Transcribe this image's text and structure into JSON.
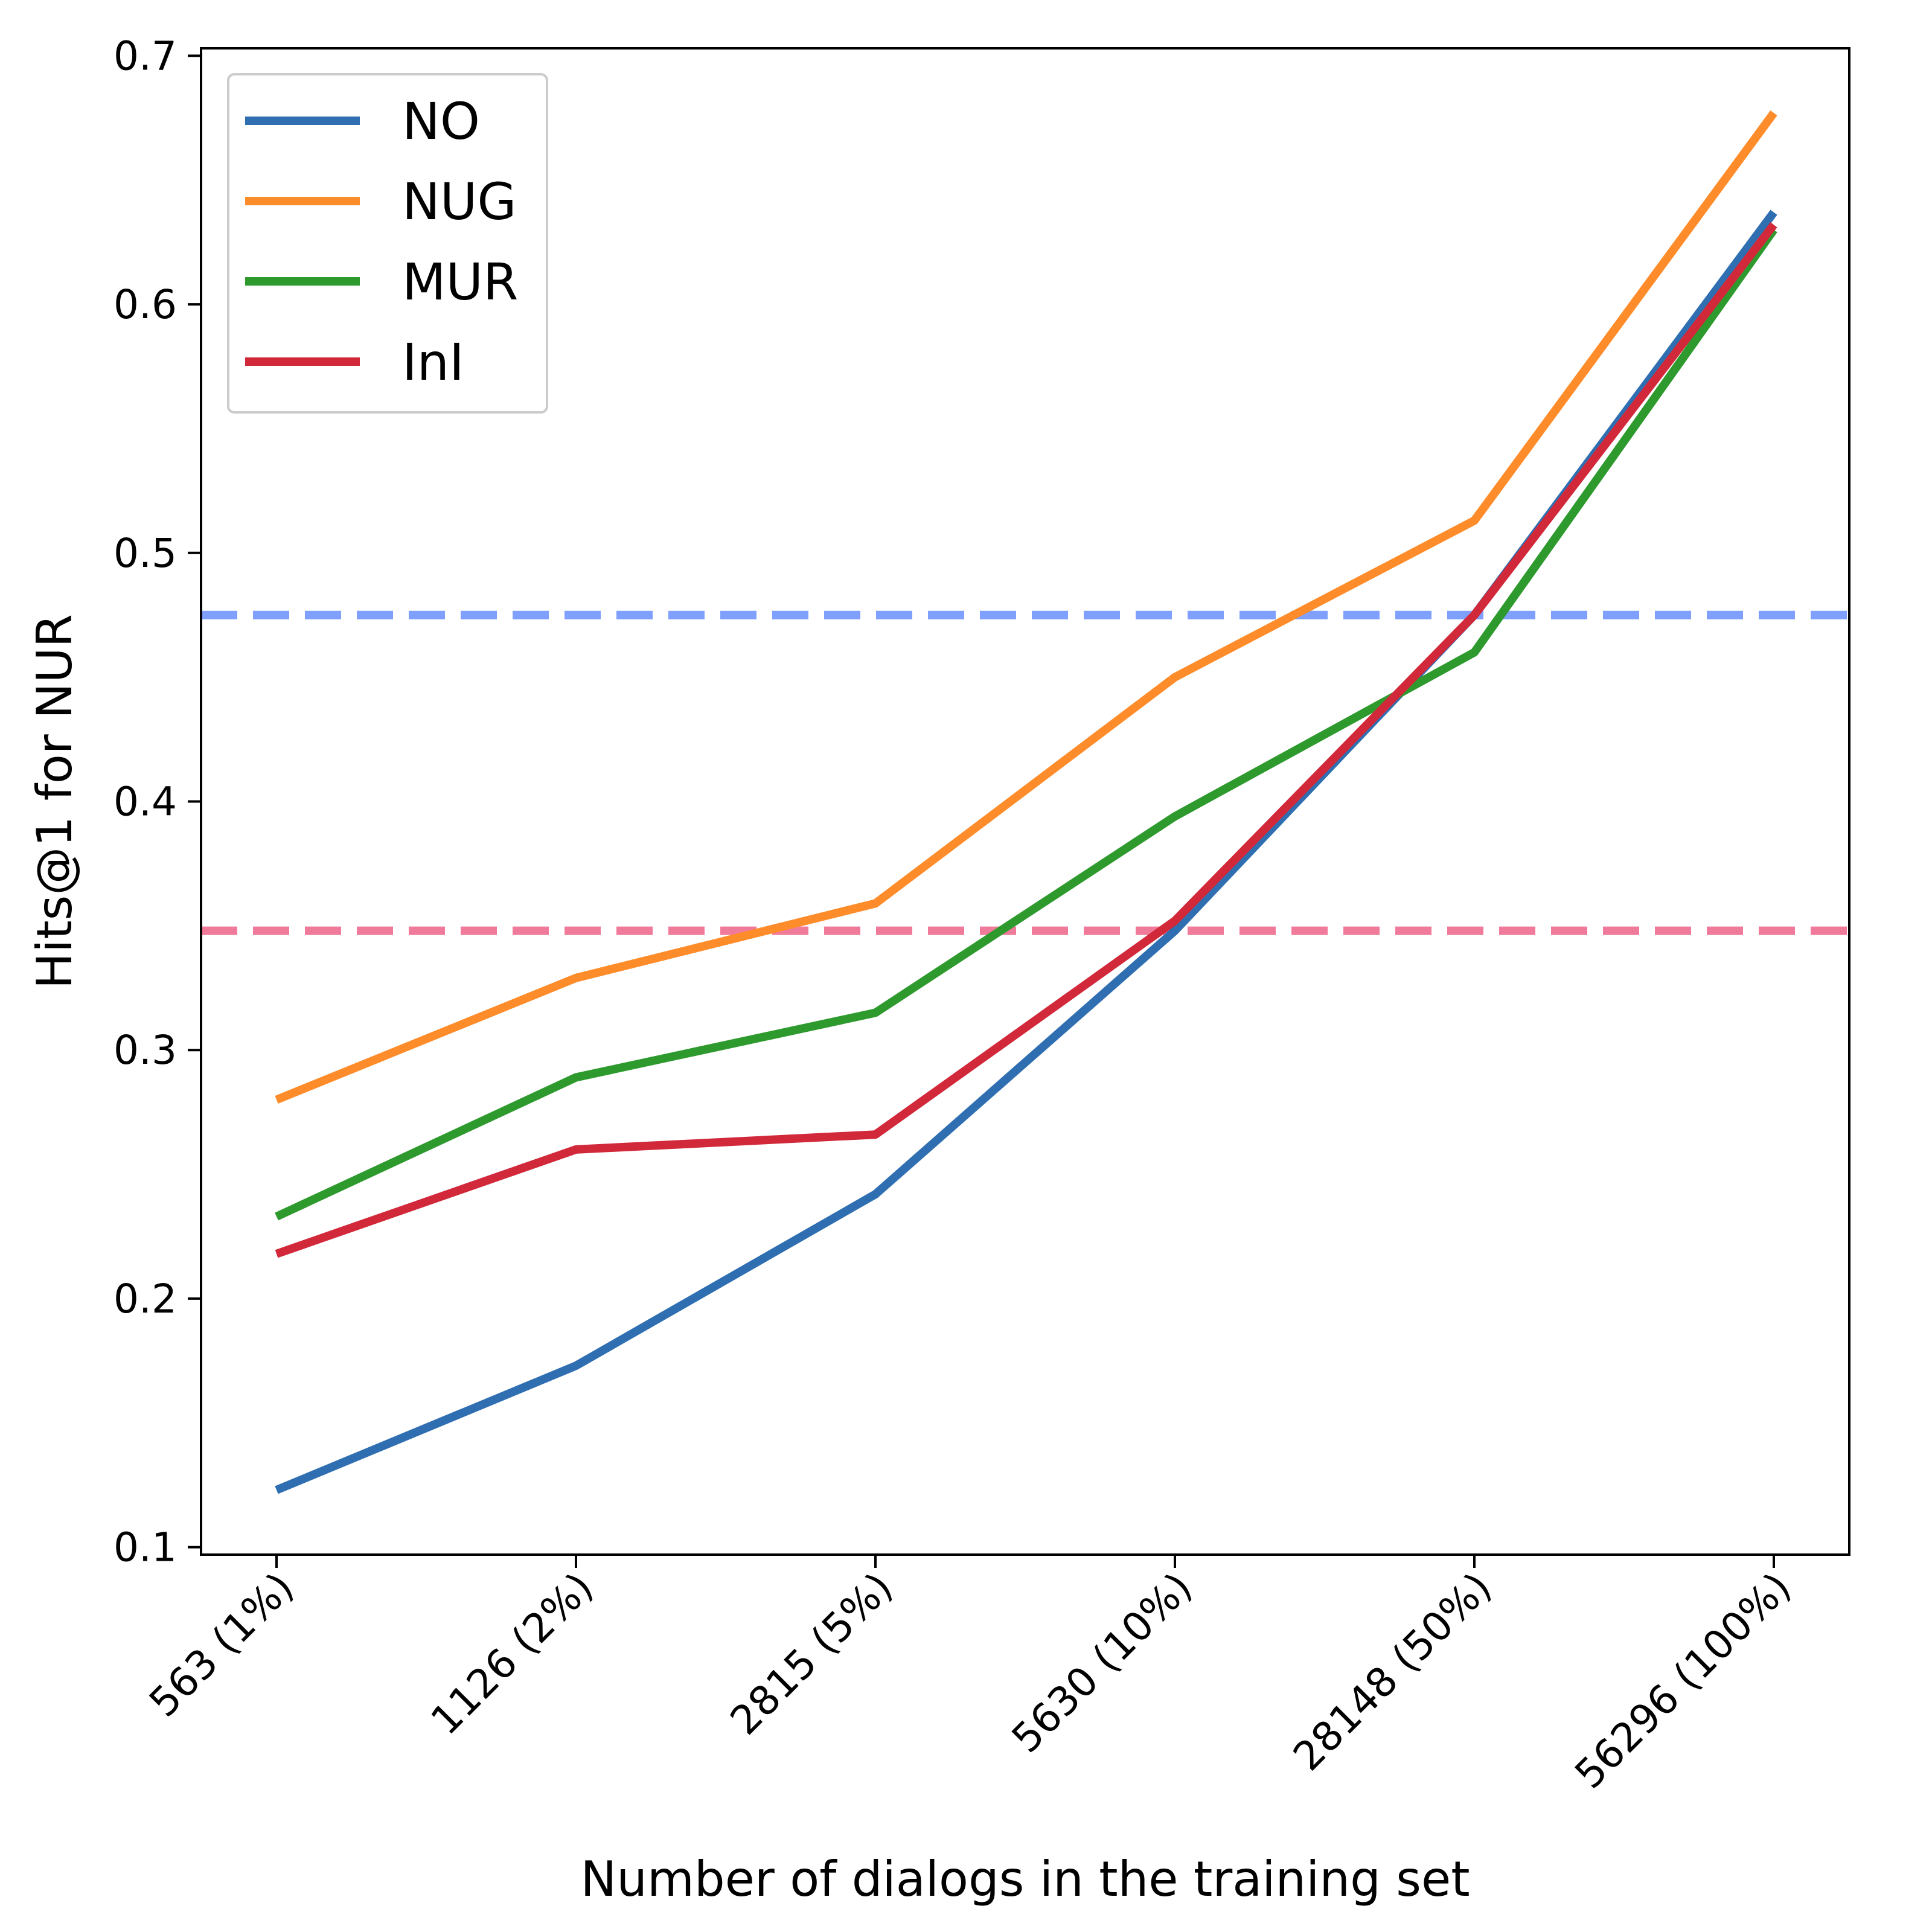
{
  "chart_data": {
    "type": "line",
    "title": "",
    "xlabel": "Number of dialogs in the training set",
    "ylabel": "Hits@1 for NUR",
    "categories": [
      "563 (1%)",
      "1126 (2%)",
      "2815 (5%)",
      "5630 (10%)",
      "28148 (50%)",
      "56296 (100%)"
    ],
    "ylim": [
      0.097,
      0.703
    ],
    "yticks": [
      0.1,
      0.2,
      0.3,
      0.4,
      0.5,
      0.6,
      0.7
    ],
    "ytick_labels": [
      "0.1",
      "0.2",
      "0.3",
      "0.4",
      "0.5",
      "0.6",
      "0.7"
    ],
    "grid": false,
    "legend_position": "upper-left",
    "series": [
      {
        "name": "NO",
        "color": "#2f6fb1",
        "values": [
          0.123,
          0.173,
          0.242,
          0.348,
          0.475,
          0.637
        ]
      },
      {
        "name": "NUG",
        "color": "#ff8c2a",
        "values": [
          0.28,
          0.329,
          0.359,
          0.45,
          0.513,
          0.677
        ]
      },
      {
        "name": "MUR",
        "color": "#2e9a2e",
        "values": [
          0.233,
          0.289,
          0.315,
          0.394,
          0.46,
          0.63
        ]
      },
      {
        "name": "InI",
        "color": "#d1283a",
        "values": [
          0.218,
          0.26,
          0.266,
          0.352,
          0.475,
          0.632
        ]
      }
    ],
    "reference_lines": [
      {
        "value": 0.475,
        "color": "#7fa0ff",
        "style": "dashed"
      },
      {
        "value": 0.348,
        "color": "#f07a9a",
        "style": "dashed"
      }
    ]
  }
}
